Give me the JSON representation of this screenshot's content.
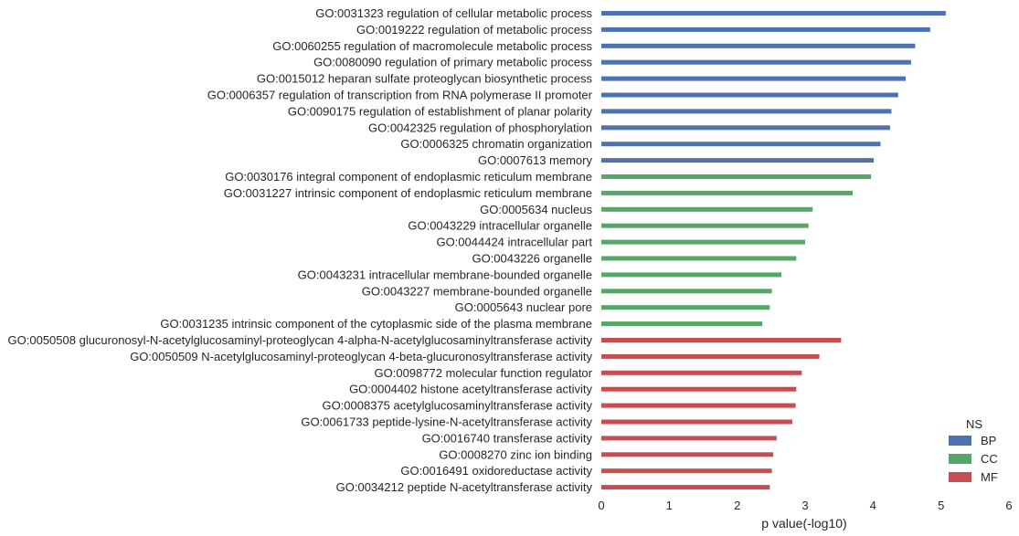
{
  "chart_data": {
    "type": "bar",
    "orientation": "horizontal",
    "xlabel": "p value(-log10)",
    "xlim": [
      0,
      6
    ],
    "xticks": [
      0,
      1,
      2,
      3,
      4,
      5,
      6
    ],
    "grid": false,
    "legend": {
      "title": "NS",
      "position": "bottom-right",
      "entries": [
        {
          "name": "BP",
          "color": "#4C72B0"
        },
        {
          "name": "CC",
          "color": "#55A868"
        },
        {
          "name": "MF",
          "color": "#C44E52"
        }
      ]
    },
    "categories": [
      "GO:0031323 regulation of cellular metabolic process",
      "GO:0019222 regulation of metabolic process",
      "GO:0060255 regulation of macromolecule metabolic process",
      "GO:0080090 regulation of primary metabolic process",
      "GO:0015012 heparan sulfate proteoglycan biosynthetic process",
      "GO:0006357 regulation of transcription from RNA polymerase II promoter",
      "GO:0090175 regulation of establishment of planar polarity",
      "GO:0042325 regulation of phosphorylation",
      "GO:0006325 chromatin organization",
      "GO:0007613 memory",
      "GO:0030176 integral component of endoplasmic reticulum membrane",
      "GO:0031227 intrinsic component of endoplasmic reticulum membrane",
      "GO:0005634 nucleus",
      "GO:0043229 intracellular organelle",
      "GO:0044424 intracellular part",
      "GO:0043226 organelle",
      "GO:0043231 intracellular membrane-bounded organelle",
      "GO:0043227 membrane-bounded organelle",
      "GO:0005643 nuclear pore",
      "GO:0031235 intrinsic component of the cytoplasmic side of the plasma membrane",
      "GO:0050508 glucuronosyl-N-acetylglucosaminyl-proteoglycan 4-alpha-N-acetylglucosaminyltransferase activity",
      "GO:0050509 N-acetylglucosaminyl-proteoglycan 4-beta-glucuronosyltransferase activity",
      "GO:0098772 molecular function regulator",
      "GO:0004402 histone acetyltransferase activity",
      "GO:0008375 acetylglucosaminyltransferase activity",
      "GO:0061733 peptide-lysine-N-acetyltransferase activity",
      "GO:0016740 transferase activity",
      "GO:0008270 zinc ion binding",
      "GO:0016491 oxidoreductase activity",
      "GO:0034212 peptide N-acetyltransferase activity"
    ],
    "values": [
      5.07,
      4.84,
      4.62,
      4.56,
      4.48,
      4.37,
      4.27,
      4.25,
      4.11,
      4.01,
      3.97,
      3.7,
      3.11,
      3.05,
      3.0,
      2.87,
      2.65,
      2.51,
      2.48,
      2.37,
      3.53,
      3.21,
      2.95,
      2.87,
      2.86,
      2.81,
      2.58,
      2.53,
      2.51,
      2.48
    ],
    "groups": [
      "BP",
      "BP",
      "BP",
      "BP",
      "BP",
      "BP",
      "BP",
      "BP",
      "BP",
      "BP",
      "CC",
      "CC",
      "CC",
      "CC",
      "CC",
      "CC",
      "CC",
      "CC",
      "CC",
      "CC",
      "MF",
      "MF",
      "MF",
      "MF",
      "MF",
      "MF",
      "MF",
      "MF",
      "MF",
      "MF"
    ]
  }
}
